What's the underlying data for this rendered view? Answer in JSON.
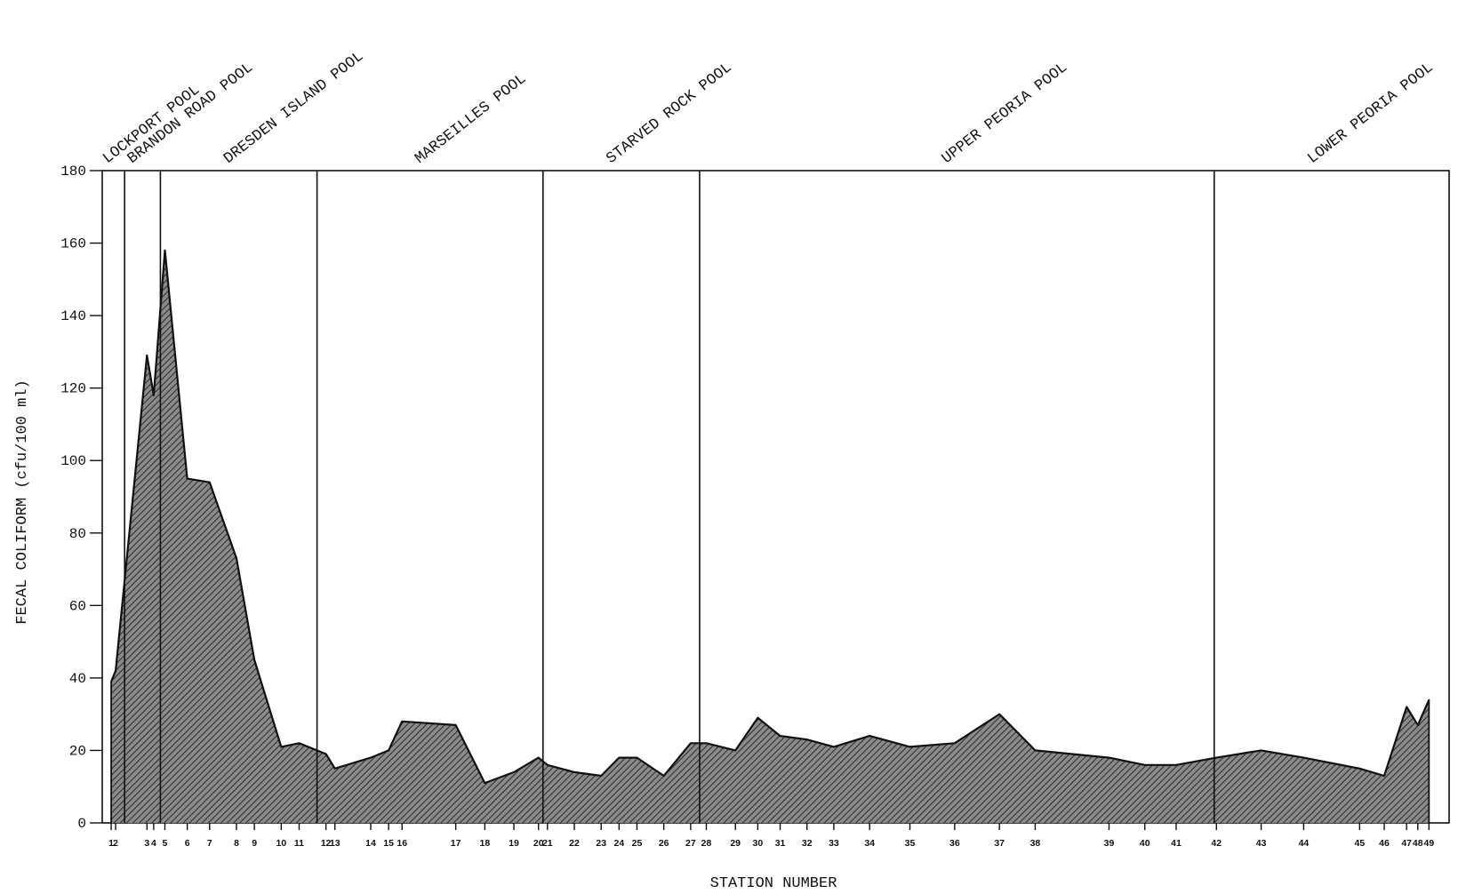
{
  "chart_data": {
    "type": "area",
    "title": "",
    "xlabel": "STATION NUMBER",
    "ylabel": "FECAL COLIFORM (cfu/100 ml)",
    "ylim": [
      0,
      180
    ],
    "yticks": [
      0,
      20,
      40,
      60,
      80,
      100,
      120,
      140,
      160,
      180
    ],
    "grid": false,
    "fill": "hatched dark gray",
    "colors": {
      "fill": "#8a8a8a",
      "hatch": "#2a2a2a",
      "line": "#111111"
    },
    "stations": [
      "1",
      "2",
      "3",
      "4",
      "5",
      "6",
      "7",
      "8",
      "9",
      "10",
      "11",
      "12",
      "13",
      "14",
      "15",
      "16",
      "17",
      "18",
      "19",
      "20",
      "21",
      "22",
      "23",
      "24",
      "25",
      "26",
      "27",
      "28",
      "29",
      "30",
      "31",
      "32",
      "33",
      "34",
      "35",
      "36",
      "37",
      "38",
      "39",
      "40",
      "41",
      "42",
      "43",
      "44",
      "45",
      "46",
      "47",
      "48",
      "49"
    ],
    "river_mile": [
      286,
      285,
      278,
      276.5,
      274,
      269,
      264,
      258,
      254,
      248,
      244,
      238,
      236,
      228,
      224,
      221,
      209,
      202.5,
      196,
      190.5,
      188.5,
      182.5,
      176.5,
      172.5,
      168.5,
      162.5,
      156.5,
      153,
      146.5,
      141.5,
      136.5,
      130.5,
      124.5,
      116.5,
      107.5,
      97.5,
      87.5,
      79.5,
      63,
      55,
      48,
      39,
      29,
      19.5,
      7,
      1.5,
      -3.5,
      -6,
      -8.5
    ],
    "values": [
      39,
      42,
      129,
      118,
      158,
      95,
      94,
      73,
      45,
      21,
      22,
      19,
      15,
      18,
      20,
      28,
      27,
      11,
      14,
      18,
      16,
      14,
      13,
      18,
      18,
      13,
      22,
      22,
      20,
      29,
      24,
      23,
      21,
      24,
      21,
      22,
      30,
      20,
      18,
      16,
      16,
      18,
      20,
      18,
      15,
      13,
      32,
      27,
      34
    ],
    "pools": [
      {
        "name": "LOCKPORT POOL",
        "start_mile": 286,
        "end_mile": 283
      },
      {
        "name": "BRANDON ROAD POOL",
        "start_mile": 283,
        "end_mile": 275
      },
      {
        "name": "DRESDEN ISLAND POOL",
        "start_mile": 275,
        "end_mile": 240
      },
      {
        "name": "MARSEILLES POOL",
        "start_mile": 240,
        "end_mile": 189.5
      },
      {
        "name": "STARVED ROCK POOL",
        "start_mile": 189.5,
        "end_mile": 154.5
      },
      {
        "name": "UPPER PEORIA POOL",
        "start_mile": 154.5,
        "end_mile": 39.5
      },
      {
        "name": "LOWER PEORIA POOL",
        "start_mile": 39.5,
        "end_mile": -9
      }
    ]
  }
}
